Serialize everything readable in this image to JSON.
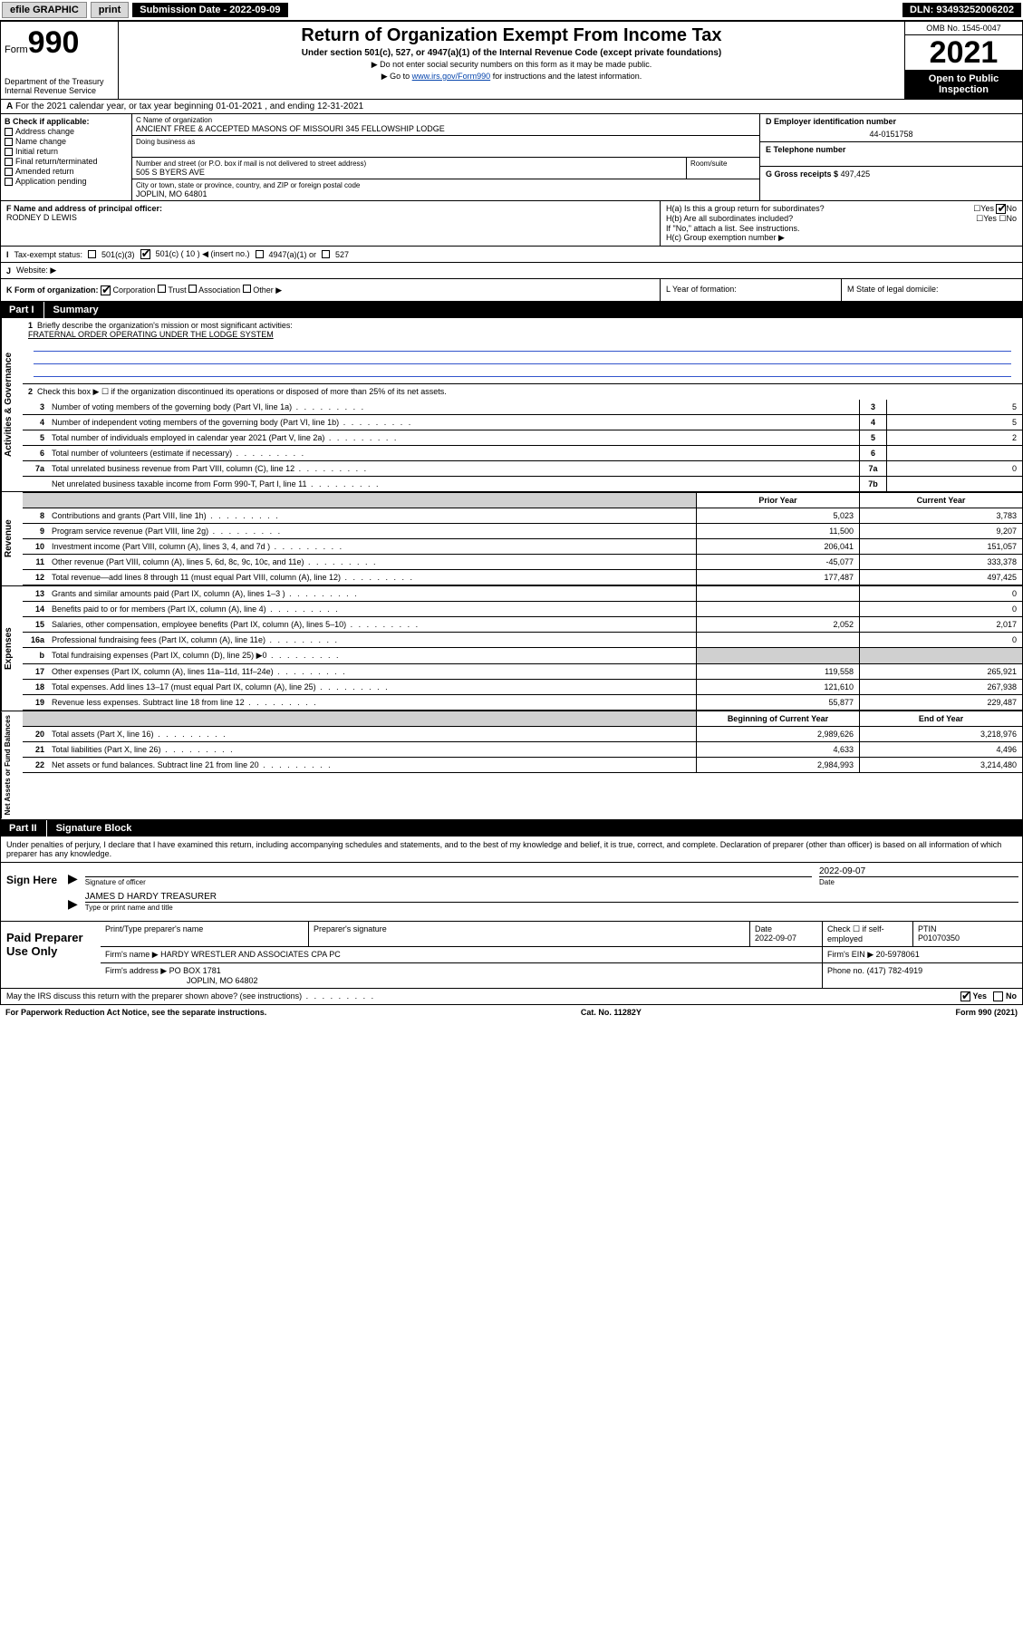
{
  "topbar": {
    "efile": "efile GRAPHIC",
    "print": "print",
    "submission": "Submission Date - 2022-09-09",
    "dln": "DLN: 93493252006202"
  },
  "header": {
    "form_prefix": "Form",
    "form_num": "990",
    "dept": "Department of the Treasury",
    "irs": "Internal Revenue Service",
    "title": "Return of Organization Exempt From Income Tax",
    "subtitle": "Under section 501(c), 527, or 4947(a)(1) of the Internal Revenue Code (except private foundations)",
    "note1": "▶ Do not enter social security numbers on this form as it may be made public.",
    "note2_pre": "▶ Go to ",
    "note2_link": "www.irs.gov/Form990",
    "note2_post": " for instructions and the latest information.",
    "omb": "OMB No. 1545-0047",
    "year": "2021",
    "open": "Open to Public Inspection"
  },
  "secA": "For the 2021 calendar year, or tax year beginning 01-01-2021   , and ending 12-31-2021",
  "colB": {
    "title": "B Check if applicable:",
    "opts": [
      "Address change",
      "Name change",
      "Initial return",
      "Final return/terminated",
      "Amended return",
      "Application pending"
    ]
  },
  "colC": {
    "name_lbl": "C Name of organization",
    "name": "ANCIENT FREE & ACCEPTED MASONS OF MISSOURI 345 FELLOWSHIP LODGE",
    "dba_lbl": "Doing business as",
    "addr_lbl": "Number and street (or P.O. box if mail is not delivered to street address)",
    "room_lbl": "Room/suite",
    "addr": "505 S BYERS AVE",
    "city_lbl": "City or town, state or province, country, and ZIP or foreign postal code",
    "city": "JOPLIN, MO  64801"
  },
  "colDE": {
    "d_lbl": "D Employer identification number",
    "d_val": "44-0151758",
    "e_lbl": "E Telephone number",
    "g_lbl": "G Gross receipts $",
    "g_val": "497,425"
  },
  "rowF": {
    "f_lbl": "F  Name and address of principal officer:",
    "f_val": "RODNEY D LEWIS",
    "ha": "H(a)  Is this a group return for subordinates?",
    "hb": "H(b)  Are all subordinates included?",
    "hb_note": "If \"No,\" attach a list. See instructions.",
    "hc": "H(c)  Group exemption number ▶"
  },
  "rowI": {
    "lbl": "Tax-exempt status:",
    "c3": "501(c)(3)",
    "c": "501(c) ( 10 ) ◀ (insert no.)",
    "a1": "4947(a)(1) or",
    "527": "527"
  },
  "rowJ": "Website: ▶",
  "rowK": {
    "k": "K Form of organization:",
    "corp": "Corporation",
    "trust": "Trust",
    "assoc": "Association",
    "other": "Other ▶",
    "l": "L Year of formation:",
    "m": "M State of legal domicile:"
  },
  "part1": {
    "num": "Part I",
    "title": "Summary"
  },
  "gov": {
    "q1_lbl": "Briefly describe the organization's mission or most significant activities:",
    "q1_val": "FRATERNAL ORDER OPERATING UNDER THE LODGE SYSTEM",
    "q2": "Check this box ▶ ☐  if the organization discontinued its operations or disposed of more than 25% of its net assets.",
    "rows": [
      {
        "n": "3",
        "t": "Number of voting members of the governing body (Part VI, line 1a)",
        "box": "3",
        "v": "5"
      },
      {
        "n": "4",
        "t": "Number of independent voting members of the governing body (Part VI, line 1b)",
        "box": "4",
        "v": "5"
      },
      {
        "n": "5",
        "t": "Total number of individuals employed in calendar year 2021 (Part V, line 2a)",
        "box": "5",
        "v": "2"
      },
      {
        "n": "6",
        "t": "Total number of volunteers (estimate if necessary)",
        "box": "6",
        "v": ""
      },
      {
        "n": "7a",
        "t": "Total unrelated business revenue from Part VIII, column (C), line 12",
        "box": "7a",
        "v": "0"
      },
      {
        "n": "",
        "t": "Net unrelated business taxable income from Form 990-T, Part I, line 11",
        "box": "7b",
        "v": ""
      }
    ]
  },
  "cols": {
    "prior": "Prior Year",
    "current": "Current Year",
    "boy": "Beginning of Current Year",
    "eoy": "End of Year"
  },
  "revenue": [
    {
      "n": "8",
      "t": "Contributions and grants (Part VIII, line 1h)",
      "p": "5,023",
      "c": "3,783"
    },
    {
      "n": "9",
      "t": "Program service revenue (Part VIII, line 2g)",
      "p": "11,500",
      "c": "9,207"
    },
    {
      "n": "10",
      "t": "Investment income (Part VIII, column (A), lines 3, 4, and 7d )",
      "p": "206,041",
      "c": "151,057"
    },
    {
      "n": "11",
      "t": "Other revenue (Part VIII, column (A), lines 5, 6d, 8c, 9c, 10c, and 11e)",
      "p": "-45,077",
      "c": "333,378"
    },
    {
      "n": "12",
      "t": "Total revenue—add lines 8 through 11 (must equal Part VIII, column (A), line 12)",
      "p": "177,487",
      "c": "497,425"
    }
  ],
  "expenses": [
    {
      "n": "13",
      "t": "Grants and similar amounts paid (Part IX, column (A), lines 1–3 )",
      "p": "",
      "c": "0"
    },
    {
      "n": "14",
      "t": "Benefits paid to or for members (Part IX, column (A), line 4)",
      "p": "",
      "c": "0"
    },
    {
      "n": "15",
      "t": "Salaries, other compensation, employee benefits (Part IX, column (A), lines 5–10)",
      "p": "2,052",
      "c": "2,017"
    },
    {
      "n": "16a",
      "t": "Professional fundraising fees (Part IX, column (A), line 11e)",
      "p": "",
      "c": "0"
    },
    {
      "n": "b",
      "t": "Total fundraising expenses (Part IX, column (D), line 25) ▶0",
      "p": "shade",
      "c": "shade"
    },
    {
      "n": "17",
      "t": "Other expenses (Part IX, column (A), lines 11a–11d, 11f–24e)",
      "p": "119,558",
      "c": "265,921"
    },
    {
      "n": "18",
      "t": "Total expenses. Add lines 13–17 (must equal Part IX, column (A), line 25)",
      "p": "121,610",
      "c": "267,938"
    },
    {
      "n": "19",
      "t": "Revenue less expenses. Subtract line 18 from line 12",
      "p": "55,877",
      "c": "229,487"
    }
  ],
  "netassets": [
    {
      "n": "20",
      "t": "Total assets (Part X, line 16)",
      "p": "2,989,626",
      "c": "3,218,976"
    },
    {
      "n": "21",
      "t": "Total liabilities (Part X, line 26)",
      "p": "4,633",
      "c": "4,496"
    },
    {
      "n": "22",
      "t": "Net assets or fund balances. Subtract line 21 from line 20",
      "p": "2,984,993",
      "c": "3,214,480"
    }
  ],
  "part2": {
    "num": "Part II",
    "title": "Signature Block"
  },
  "decl": "Under penalties of perjury, I declare that I have examined this return, including accompanying schedules and statements, and to the best of my knowledge and belief, it is true, correct, and complete. Declaration of preparer (other than officer) is based on all information of which preparer has any knowledge.",
  "sign": {
    "here": "Sign Here",
    "sig_lbl": "Signature of officer",
    "date_lbl": "Date",
    "date_val": "2022-09-07",
    "name": "JAMES D HARDY TREASURER",
    "name_lbl": "Type or print name and title"
  },
  "prep": {
    "title": "Paid Preparer Use Only",
    "h1": "Print/Type preparer's name",
    "h2": "Preparer's signature",
    "h3": "Date",
    "h3v": "2022-09-07",
    "h4": "Check ☐ if self-employed",
    "h5": "PTIN",
    "h5v": "P01070350",
    "firm_lbl": "Firm's name    ▶",
    "firm": "HARDY WRESTLER AND ASSOCIATES CPA PC",
    "ein_lbl": "Firm's EIN ▶",
    "ein": "20-5978061",
    "addr_lbl": "Firm's address ▶",
    "addr1": "PO BOX 1781",
    "addr2": "JOPLIN, MO  64802",
    "phone_lbl": "Phone no.",
    "phone": "(417) 782-4919"
  },
  "footer": {
    "discuss": "May the IRS discuss this return with the preparer shown above? (see instructions)",
    "yes": "Yes",
    "no": "No",
    "pra": "For Paperwork Reduction Act Notice, see the separate instructions.",
    "cat": "Cat. No. 11282Y",
    "form": "Form 990 (2021)"
  },
  "vtabs": {
    "gov": "Activities & Governance",
    "rev": "Revenue",
    "exp": "Expenses",
    "net": "Net Assets or Fund Balances"
  }
}
